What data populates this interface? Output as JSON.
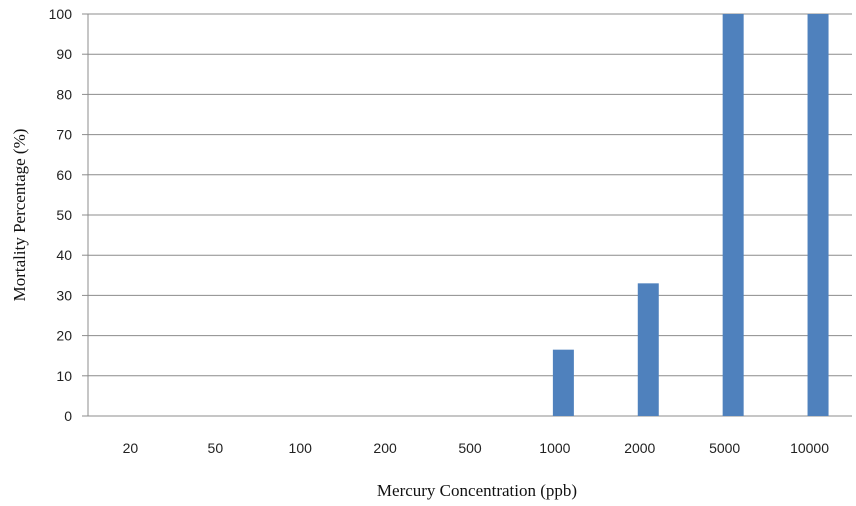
{
  "chart_data": {
    "type": "bar",
    "title": "",
    "xlabel": "Mercury Concentration (ppb)",
    "ylabel": "Mortality Percentage (%)",
    "categories": [
      "20",
      "50",
      "100",
      "200",
      "500",
      "1000",
      "2000",
      "5000",
      "10000"
    ],
    "values": [
      0,
      0,
      0,
      0,
      0,
      16.5,
      33,
      100,
      100
    ],
    "ylim": [
      0,
      100
    ],
    "yticks": [
      0,
      10,
      20,
      30,
      40,
      50,
      60,
      70,
      80,
      90,
      100
    ],
    "grid": true,
    "legend": "none",
    "bar_color": "#4f81bd",
    "grid_color": "#8c8c8c"
  }
}
